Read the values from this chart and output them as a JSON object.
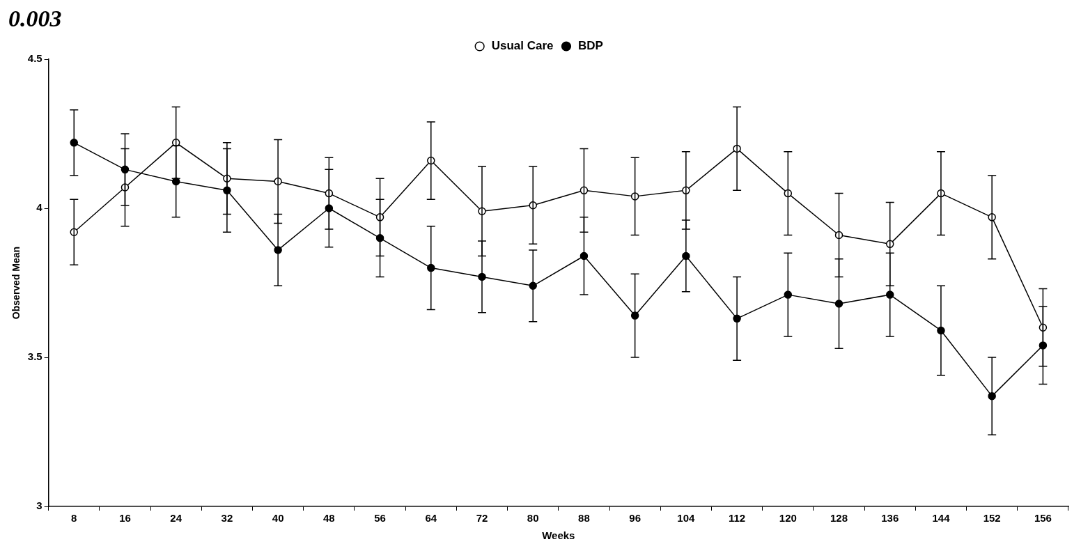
{
  "chart_data": {
    "type": "line",
    "xlabel": "Weeks",
    "ylabel": "Observed Mean",
    "annotations": [
      "0.003"
    ],
    "categories": [
      "8",
      "16",
      "24",
      "32",
      "40",
      "48",
      "56",
      "64",
      "72",
      "80",
      "88",
      "96",
      "104",
      "112",
      "120",
      "128",
      "136",
      "144",
      "152",
      "156"
    ],
    "series": [
      {
        "name": "Usual Care",
        "color": "#000000",
        "values": [
          3.92,
          4.07,
          4.22,
          4.1,
          4.09,
          4.05,
          3.97,
          4.16,
          3.99,
          4.01,
          4.06,
          4.04,
          4.06,
          4.2,
          4.05,
          3.91,
          3.88,
          4.05,
          3.97,
          3.6
        ],
        "errors": [
          0.11,
          0.13,
          0.12,
          0.12,
          0.14,
          0.12,
          0.13,
          0.13,
          0.15,
          0.13,
          0.14,
          0.13,
          0.13,
          0.14,
          0.14,
          0.14,
          0.14,
          0.14,
          0.14,
          0.13
        ]
      },
      {
        "name": "BDP",
        "color": "#000000",
        "values": [
          4.22,
          4.13,
          4.09,
          4.06,
          3.86,
          4.0,
          3.9,
          3.8,
          3.77,
          3.74,
          3.84,
          3.64,
          3.84,
          3.63,
          3.71,
          3.68,
          3.71,
          3.59,
          3.37,
          3.54
        ],
        "errors": [
          0.11,
          0.12,
          0.12,
          0.14,
          0.12,
          0.13,
          0.13,
          0.14,
          0.12,
          0.12,
          0.13,
          0.14,
          0.12,
          0.14,
          0.14,
          0.15,
          0.14,
          0.15,
          0.13,
          0.13
        ]
      }
    ],
    "ylim": [
      3,
      4.5
    ],
    "yticks": [
      3,
      3.5,
      4,
      4.5
    ],
    "grid": false,
    "legend": "top",
    "marker": "circle",
    "line_style": "solid"
  }
}
